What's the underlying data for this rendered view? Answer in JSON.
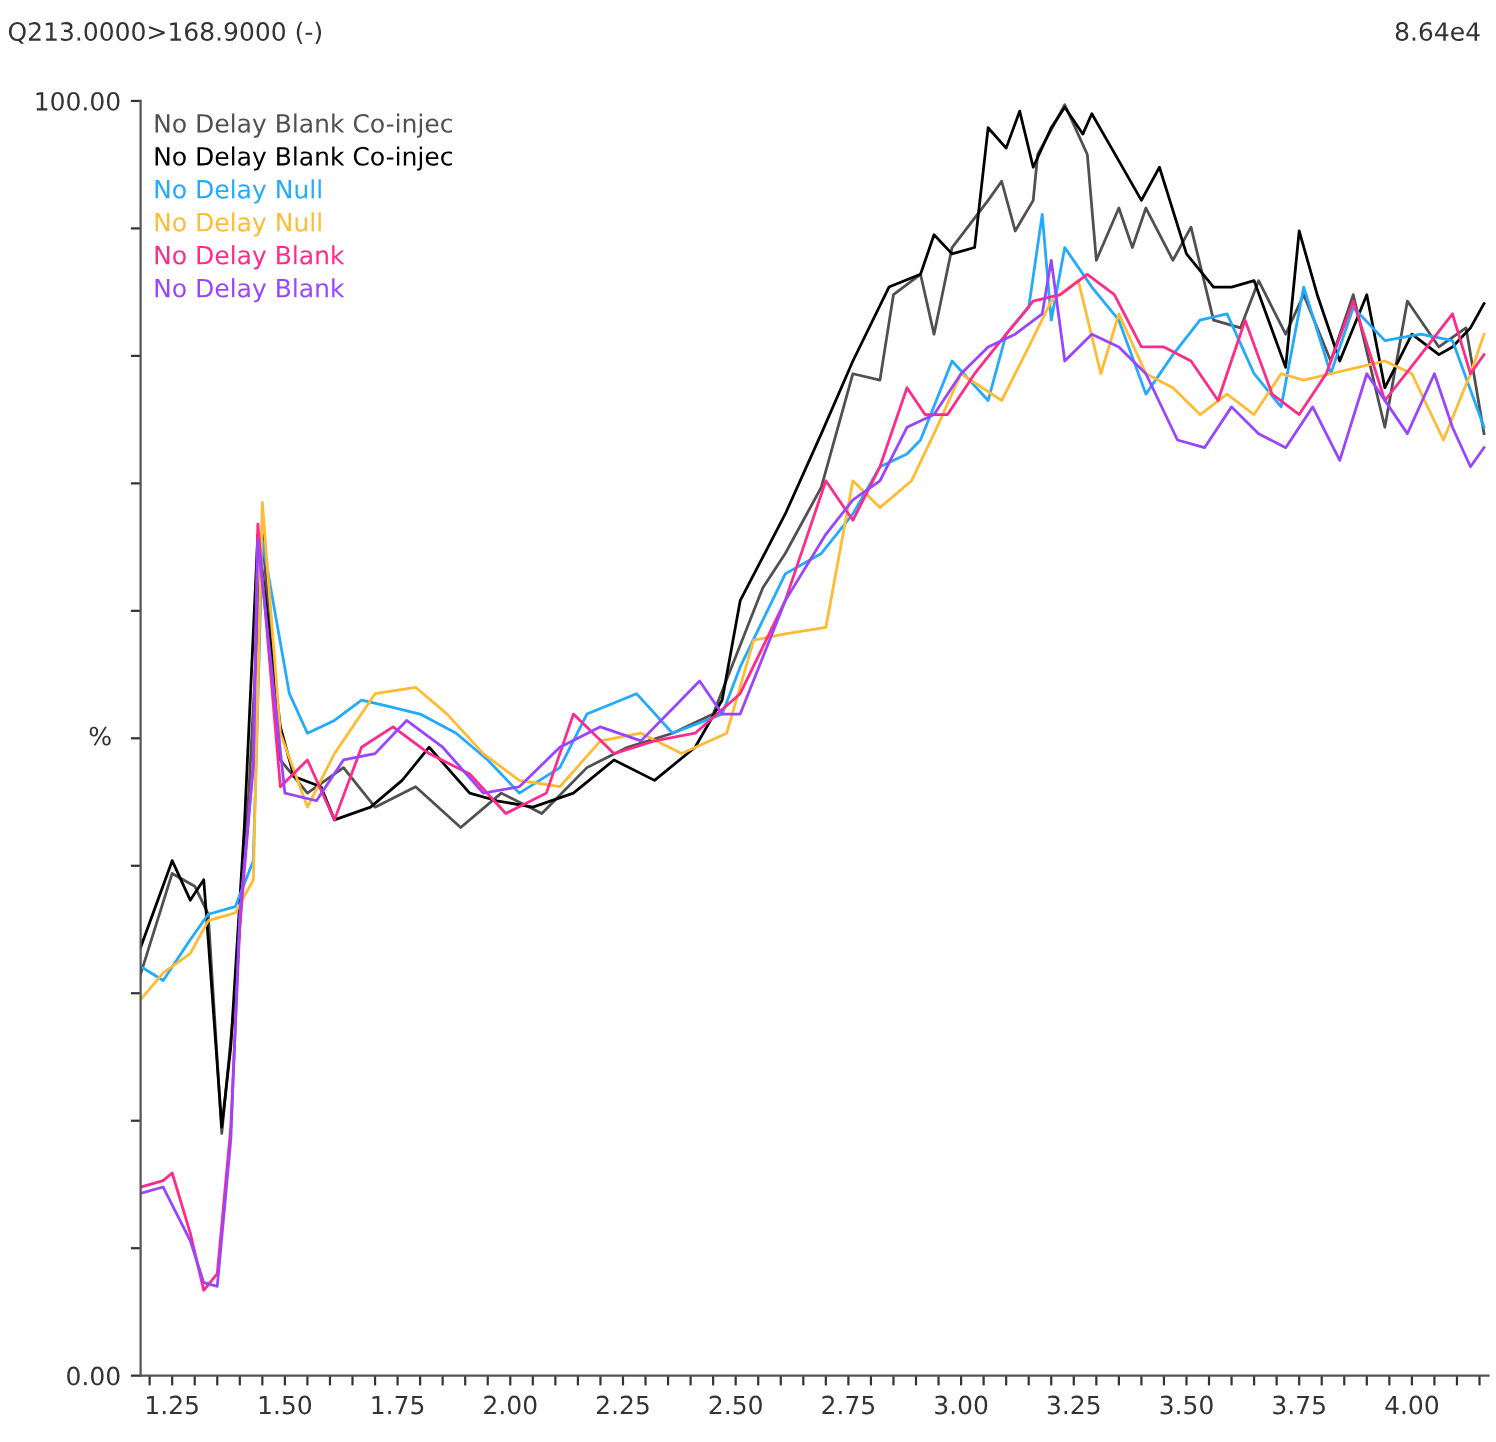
{
  "chart_data": {
    "type": "line",
    "title": "Q213.0000>168.9000 (-)",
    "ylabel": "%",
    "annotations": [
      "8.64e4"
    ],
    "xlim": [
      1.18,
      4.17
    ],
    "ylim": [
      0,
      100
    ],
    "xticks": [
      {
        "value": 1.2,
        "label": null
      },
      {
        "value": 1.25,
        "label": "1.25"
      },
      {
        "value": 1.3,
        "label": null
      },
      {
        "value": 1.35,
        "label": null
      },
      {
        "value": 1.4,
        "label": null
      },
      {
        "value": 1.45,
        "label": null
      },
      {
        "value": 1.5,
        "label": "1.50"
      },
      {
        "value": 1.55,
        "label": null
      },
      {
        "value": 1.6,
        "label": null
      },
      {
        "value": 1.65,
        "label": null
      },
      {
        "value": 1.7,
        "label": null
      },
      {
        "value": 1.75,
        "label": "1.75"
      },
      {
        "value": 1.8,
        "label": null
      },
      {
        "value": 1.85,
        "label": null
      },
      {
        "value": 1.9,
        "label": null
      },
      {
        "value": 1.95,
        "label": null
      },
      {
        "value": 2.0,
        "label": "2.00"
      },
      {
        "value": 2.05,
        "label": null
      },
      {
        "value": 2.1,
        "label": null
      },
      {
        "value": 2.15,
        "label": null
      },
      {
        "value": 2.2,
        "label": null
      },
      {
        "value": 2.25,
        "label": "2.25"
      },
      {
        "value": 2.3,
        "label": null
      },
      {
        "value": 2.35,
        "label": null
      },
      {
        "value": 2.4,
        "label": null
      },
      {
        "value": 2.45,
        "label": null
      },
      {
        "value": 2.5,
        "label": "2.50"
      },
      {
        "value": 2.55,
        "label": null
      },
      {
        "value": 2.6,
        "label": null
      },
      {
        "value": 2.65,
        "label": null
      },
      {
        "value": 2.7,
        "label": null
      },
      {
        "value": 2.75,
        "label": "2.75"
      },
      {
        "value": 2.8,
        "label": null
      },
      {
        "value": 2.85,
        "label": null
      },
      {
        "value": 2.9,
        "label": null
      },
      {
        "value": 2.95,
        "label": null
      },
      {
        "value": 3.0,
        "label": "3.00"
      },
      {
        "value": 3.05,
        "label": null
      },
      {
        "value": 3.1,
        "label": null
      },
      {
        "value": 3.15,
        "label": null
      },
      {
        "value": 3.2,
        "label": null
      },
      {
        "value": 3.25,
        "label": "3.25"
      },
      {
        "value": 3.3,
        "label": null
      },
      {
        "value": 3.35,
        "label": null
      },
      {
        "value": 3.4,
        "label": null
      },
      {
        "value": 3.45,
        "label": null
      },
      {
        "value": 3.5,
        "label": "3.50"
      },
      {
        "value": 3.55,
        "label": null
      },
      {
        "value": 3.6,
        "label": null
      },
      {
        "value": 3.65,
        "label": null
      },
      {
        "value": 3.7,
        "label": null
      },
      {
        "value": 3.75,
        "label": "3.75"
      },
      {
        "value": 3.8,
        "label": null
      },
      {
        "value": 3.85,
        "label": null
      },
      {
        "value": 3.9,
        "label": null
      },
      {
        "value": 3.95,
        "label": null
      },
      {
        "value": 4.0,
        "label": "4.00"
      },
      {
        "value": 4.05,
        "label": null
      },
      {
        "value": 4.1,
        "label": null
      },
      {
        "value": 4.15,
        "label": null
      }
    ],
    "yticks": [
      {
        "value": 0,
        "label": "0.00"
      },
      {
        "value": 10,
        "label": null
      },
      {
        "value": 20,
        "label": null
      },
      {
        "value": 30,
        "label": null
      },
      {
        "value": 40,
        "label": null
      },
      {
        "value": 50,
        "label": null
      },
      {
        "value": 60,
        "label": null
      },
      {
        "value": 70,
        "label": null
      },
      {
        "value": 80,
        "label": null
      },
      {
        "value": 90,
        "label": null
      },
      {
        "value": 100,
        "label": "100.00"
      }
    ],
    "grid": false,
    "legend": "top left",
    "marker": "none",
    "line_style": "solid",
    "series": [
      {
        "name": "No Delay Blank Co-injec",
        "color": "#505050",
        "x": [
          1.18,
          1.25,
          1.3,
          1.33,
          1.36,
          1.39,
          1.42,
          1.45,
          1.49,
          1.55,
          1.63,
          1.7,
          1.79,
          1.89,
          1.98,
          2.07,
          2.17,
          2.26,
          2.36,
          2.45,
          2.56,
          2.61,
          2.69,
          2.76,
          2.82,
          2.85,
          2.91,
          2.94,
          2.98,
          3.06,
          3.09,
          3.12,
          3.16,
          3.17,
          3.23,
          3.28,
          3.3,
          3.35,
          3.38,
          3.41,
          3.47,
          3.51,
          3.56,
          3.62,
          3.66,
          3.72,
          3.76,
          3.82,
          3.87,
          3.94,
          3.99,
          4.06,
          4.12,
          4.16
        ],
        "values": [
          31.5,
          39.4,
          38.4,
          36.2,
          19,
          30,
          45.7,
          66,
          48.3,
          45.7,
          47.7,
          44.6,
          46.2,
          43,
          45.7,
          44.1,
          47.7,
          49.3,
          50.4,
          51.9,
          61.8,
          64.5,
          69.7,
          78.6,
          78.1,
          84.8,
          86.4,
          81.7,
          88.5,
          92.2,
          93.7,
          89.8,
          92.2,
          95.8,
          99.7,
          95.8,
          87.5,
          91.6,
          88.5,
          91.6,
          87.5,
          90.1,
          82.8,
          82.2,
          85.9,
          81.7,
          84.8,
          79.6,
          84.8,
          74.4,
          84.3,
          80.7,
          82.2,
          73.9
        ]
      },
      {
        "name": "No Delay Blank Co-injec",
        "color": "#000000",
        "x": [
          1.18,
          1.25,
          1.29,
          1.32,
          1.33,
          1.36,
          1.38,
          1.41,
          1.44,
          1.49,
          1.52,
          1.58,
          1.61,
          1.69,
          1.76,
          1.82,
          1.91,
          1.97,
          2.05,
          2.14,
          2.23,
          2.32,
          2.41,
          2.47,
          2.51,
          2.61,
          2.69,
          2.76,
          2.84,
          2.91,
          2.94,
          2.98,
          3.03,
          3.06,
          3.1,
          3.13,
          3.16,
          3.2,
          3.23,
          3.27,
          3.29,
          3.35,
          3.4,
          3.44,
          3.5,
          3.56,
          3.6,
          3.65,
          3.72,
          3.75,
          3.79,
          3.84,
          3.9,
          3.94,
          4.0,
          4.06,
          4.09,
          4.13,
          4.16
        ],
        "values": [
          33.6,
          40.4,
          37.3,
          38.9,
          34.2,
          19.5,
          25.8,
          43,
          66,
          50.9,
          47,
          46.2,
          43.6,
          44.6,
          46.7,
          49.3,
          45.7,
          45.1,
          44.6,
          45.7,
          48.3,
          46.7,
          49.3,
          53,
          60.8,
          67.6,
          73.9,
          79.6,
          85.4,
          86.4,
          89.5,
          88,
          88.5,
          97.9,
          96.3,
          99.2,
          94.8,
          97.9,
          99.5,
          97.4,
          99,
          95.3,
          92.2,
          94.8,
          88,
          85.4,
          85.4,
          85.9,
          79.1,
          89.8,
          84.8,
          79.6,
          84.8,
          77.5,
          81.7,
          80.1,
          80.7,
          82.2,
          84.1
        ]
      },
      {
        "name": "No Delay Null",
        "color": "#22aaff",
        "x": [
          1.18,
          1.23,
          1.29,
          1.33,
          1.39,
          1.43,
          1.45,
          1.51,
          1.55,
          1.61,
          1.67,
          1.73,
          1.8,
          1.88,
          1.95,
          2.02,
          2.11,
          2.17,
          2.28,
          2.36,
          2.47,
          2.51,
          2.61,
          2.69,
          2.76,
          2.82,
          2.88,
          2.91,
          2.98,
          3.06,
          3.1,
          3.15,
          3.18,
          3.2,
          3.23,
          3.29,
          3.35,
          3.41,
          3.47,
          3.53,
          3.59,
          3.65,
          3.71,
          3.76,
          3.82,
          3.87,
          3.94,
          4.02,
          4.09,
          4.16
        ],
        "values": [
          32.1,
          31,
          34.2,
          36.2,
          36.8,
          40.4,
          65.5,
          53.5,
          50.4,
          51.4,
          53,
          52.5,
          51.9,
          50.4,
          48.3,
          45.7,
          47.7,
          51.9,
          53.5,
          50.4,
          51.9,
          55.6,
          62.9,
          64.5,
          67.6,
          71.3,
          72.3,
          73.4,
          79.6,
          76.5,
          81.7,
          83.8,
          91.1,
          82.8,
          88.5,
          85.4,
          82.8,
          77,
          80.1,
          82.8,
          83.3,
          78.6,
          76,
          85.4,
          78.6,
          83.8,
          81.2,
          81.7,
          81.2,
          74.4
        ]
      },
      {
        "name": "No Delay Null",
        "color": "#ffbb33",
        "x": [
          1.18,
          1.23,
          1.29,
          1.33,
          1.39,
          1.43,
          1.45,
          1.49,
          1.55,
          1.61,
          1.7,
          1.79,
          1.86,
          1.94,
          2.02,
          2.11,
          2.2,
          2.29,
          2.38,
          2.48,
          2.54,
          2.61,
          2.7,
          2.76,
          2.82,
          2.89,
          2.94,
          3.0,
          3.09,
          3.15,
          3.2,
          3.26,
          3.31,
          3.35,
          3.41,
          3.47,
          3.53,
          3.59,
          3.65,
          3.71,
          3.76,
          3.82,
          3.88,
          3.94,
          4.0,
          4.07,
          4.13,
          4.16
        ],
        "values": [
          29.5,
          31.6,
          33.1,
          35.7,
          36.3,
          38.9,
          68.5,
          50.4,
          44.6,
          48.8,
          53.5,
          54,
          51.9,
          48.8,
          46.7,
          46.2,
          49.8,
          50.4,
          48.8,
          50.4,
          57.7,
          58.2,
          58.7,
          70.2,
          68.1,
          70.2,
          73.9,
          78.6,
          76.5,
          80.7,
          84.3,
          85.9,
          78.6,
          83.3,
          78.6,
          77.5,
          75.4,
          77,
          75.4,
          78.6,
          78.1,
          78.6,
          79.1,
          79.6,
          78.6,
          73.4,
          78.6,
          81.7
        ]
      },
      {
        "name": "No Delay Blank",
        "color": "#ff2a8a",
        "x": [
          1.18,
          1.23,
          1.25,
          1.29,
          1.32,
          1.35,
          1.38,
          1.4,
          1.43,
          1.44,
          1.49,
          1.55,
          1.61,
          1.67,
          1.74,
          1.82,
          1.91,
          1.99,
          2.08,
          2.14,
          2.23,
          2.32,
          2.41,
          2.51,
          2.61,
          2.7,
          2.76,
          2.82,
          2.88,
          2.92,
          2.97,
          3.03,
          3.1,
          3.16,
          3.22,
          3.28,
          3.34,
          3.4,
          3.45,
          3.51,
          3.57,
          3.63,
          3.69,
          3.75,
          3.81,
          3.87,
          3.94,
          4.02,
          4.09,
          4.13,
          4.16
        ],
        "values": [
          14.8,
          15.3,
          15.9,
          11.2,
          6.7,
          8,
          19.5,
          35.2,
          48.3,
          66.8,
          46.2,
          48.3,
          43.6,
          49.3,
          50.9,
          48.8,
          47.2,
          44.1,
          45.7,
          51.9,
          48.8,
          49.8,
          50.4,
          53.5,
          60.8,
          70.2,
          67.1,
          71.3,
          77.5,
          75.4,
          75.4,
          78.6,
          81.7,
          84.3,
          84.8,
          86.4,
          84.8,
          80.7,
          80.7,
          79.6,
          76.5,
          82.8,
          77,
          75.4,
          78.6,
          84.3,
          76.5,
          80.1,
          83.3,
          78.6,
          80.1
        ]
      },
      {
        "name": "No Delay Blank",
        "color": "#9944ff",
        "x": [
          1.18,
          1.23,
          1.29,
          1.32,
          1.35,
          1.38,
          1.4,
          1.43,
          1.44,
          1.5,
          1.57,
          1.63,
          1.7,
          1.77,
          1.85,
          1.94,
          2.02,
          2.11,
          2.2,
          2.29,
          2.42,
          2.47,
          2.51,
          2.61,
          2.7,
          2.76,
          2.82,
          2.88,
          2.94,
          3.0,
          3.06,
          3.12,
          3.18,
          3.2,
          3.23,
          3.29,
          3.35,
          3.41,
          3.48,
          3.54,
          3.6,
          3.66,
          3.72,
          3.78,
          3.84,
          3.9,
          3.99,
          4.05,
          4.09,
          4.13,
          4.16
        ],
        "values": [
          14.3,
          14.8,
          10.6,
          7.3,
          7,
          18.5,
          36.3,
          47.7,
          65.5,
          45.7,
          45.1,
          48.3,
          48.8,
          51.4,
          49.3,
          45.7,
          46.2,
          49.3,
          50.9,
          49.8,
          54.5,
          51.9,
          51.9,
          60.8,
          66,
          68.7,
          70.2,
          74.4,
          75.4,
          78.6,
          80.7,
          81.7,
          83.3,
          87.5,
          79.6,
          81.7,
          80.7,
          78.6,
          73.4,
          72.8,
          76,
          73.9,
          72.8,
          76,
          71.8,
          78.6,
          73.9,
          78.6,
          74.4,
          71.3,
          72.8
        ]
      }
    ]
  }
}
